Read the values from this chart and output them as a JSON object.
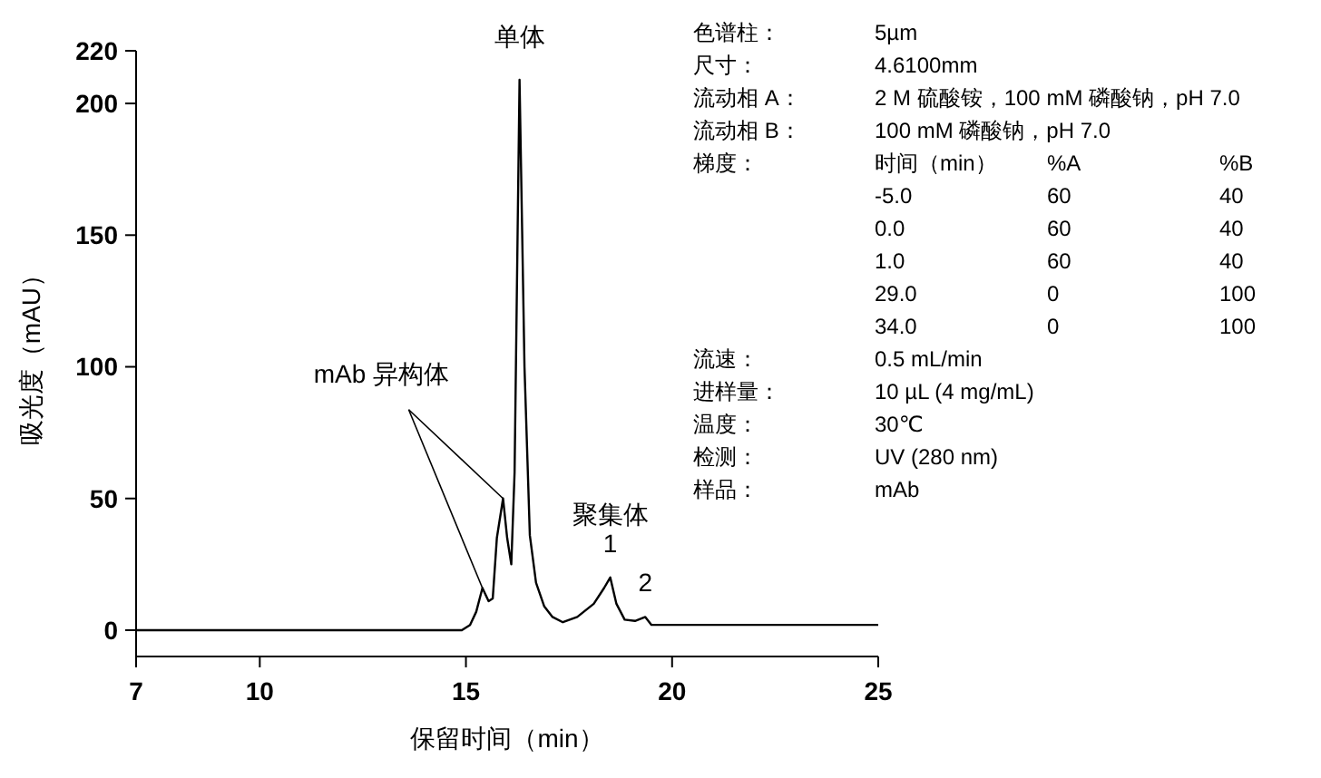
{
  "chart_data": {
    "type": "line",
    "xlabel": "保留时间（min）",
    "ylabel": "吸光度（mAU）",
    "xlim": [
      7,
      25
    ],
    "ylim": [
      -10,
      220
    ],
    "xticks": [
      7,
      10,
      15,
      20,
      25
    ],
    "yticks": [
      0,
      50,
      100,
      150,
      200,
      220
    ],
    "marker": "none",
    "line_style": "solid",
    "series": [
      {
        "color": "#000000",
        "x": [
          7,
          14.9,
          15.1,
          15.25,
          15.4,
          15.55,
          15.65,
          15.75,
          15.9,
          16.0,
          16.1,
          16.18,
          16.3,
          16.42,
          16.55,
          16.7,
          16.9,
          17.1,
          17.35,
          17.7,
          18.1,
          18.35,
          18.5,
          18.65,
          18.85,
          19.1,
          19.35,
          19.5,
          25
        ],
        "values": [
          0,
          0,
          2,
          7,
          16,
          11,
          12,
          35,
          50,
          35,
          25,
          60,
          209,
          100,
          36,
          18,
          9,
          5,
          3,
          5,
          10,
          16,
          20,
          10,
          4,
          3.5,
          5,
          2,
          2
        ]
      }
    ],
    "annotations": [
      {
        "text": "单体",
        "x": 16.3,
        "y": 209
      },
      {
        "text": "mAb 异构体",
        "x": 15.9,
        "y": 50
      },
      {
        "text": "聚集体",
        "x": 18.5,
        "y": 20
      },
      {
        "text": "1",
        "x": 18.5,
        "y": 20
      },
      {
        "text": "2",
        "x": 19.35,
        "y": 5
      },
      "色谱柱：\t5µm",
      "尺寸：\t4.6100mm",
      "流动相 A：\t2 M 硫酸铵，100 mM 磷酸钠，pH 7.0",
      "流动相 B：\t100 mM 磷酸钠，pH 7.0",
      "梯度：\t时间（min）\t%A\t%B",
      "\t-5.0\t60\t40",
      "\t0.0\t60\t40",
      "\t1.0\t60\t40",
      "\t29.0\t0\t100",
      "\t34.0\t0\t100",
      "流速：\t0.5 mL/min",
      "进样量：\t10 µL (4 mg/mL)",
      "温度：\t30℃",
      "检测：\tUV (280 nm)",
      "样品：\tmAb"
    ]
  }
}
